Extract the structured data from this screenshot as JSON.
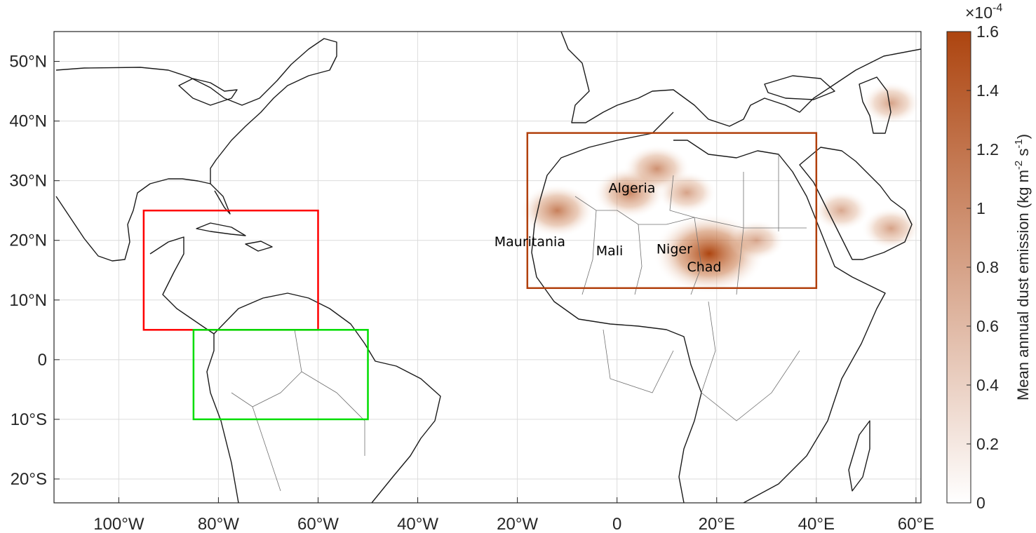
{
  "map": {
    "projection": "equirectangular",
    "extent": {
      "lon": [
        -113,
        61
      ],
      "lat": [
        -24,
        55
      ]
    },
    "x_ticks": [
      {
        "lon": -100,
        "label": "100°W"
      },
      {
        "lon": -80,
        "label": "80°W"
      },
      {
        "lon": -60,
        "label": "60°W"
      },
      {
        "lon": -40,
        "label": "40°W"
      },
      {
        "lon": -20,
        "label": "20°W"
      },
      {
        "lon": 0,
        "label": "0"
      },
      {
        "lon": 20,
        "label": "20°E"
      },
      {
        "lon": 40,
        "label": "40°E"
      },
      {
        "lon": 60,
        "label": "60°E"
      }
    ],
    "y_ticks": [
      {
        "lat": 50,
        "label": "50°N"
      },
      {
        "lat": 40,
        "label": "40°N"
      },
      {
        "lat": 30,
        "label": "30°N"
      },
      {
        "lat": 20,
        "label": "20°N"
      },
      {
        "lat": 10,
        "label": "10°N"
      },
      {
        "lat": 0,
        "label": "0"
      },
      {
        "lat": -10,
        "label": "10°S"
      },
      {
        "lat": -20,
        "label": "20°S"
      }
    ],
    "grid": true,
    "regions": [
      {
        "name": "red-box",
        "color": "#ff0000",
        "lon": [
          -95,
          -60
        ],
        "lat": [
          5,
          25
        ]
      },
      {
        "name": "green-box",
        "color": "#00dd00",
        "lon": [
          -85,
          -50
        ],
        "lat": [
          -10,
          5
        ]
      },
      {
        "name": "brown-box",
        "color": "#b1400d",
        "lon": [
          -18,
          40
        ],
        "lat": [
          12,
          38
        ]
      }
    ],
    "country_labels": [
      {
        "text": "Algeria",
        "lon": 3,
        "lat": 28
      },
      {
        "text": "Mauritania",
        "lon": -17.5,
        "lat": 19
      },
      {
        "text": "Mali",
        "lon": -1.5,
        "lat": 17.5
      },
      {
        "text": "Niger",
        "lon": 11.5,
        "lat": 17.8
      },
      {
        "text": "Chad",
        "lon": 17.5,
        "lat": 14.8
      }
    ],
    "dust_hotspots": [
      {
        "lon": 18.5,
        "lat": 17.8,
        "value": 1.45
      },
      {
        "lon": -12,
        "lat": 25,
        "value": 0.7
      },
      {
        "lon": 2.5,
        "lat": 28,
        "value": 0.65
      },
      {
        "lon": 8,
        "lat": 32,
        "value": 0.55
      },
      {
        "lon": 14,
        "lat": 28,
        "value": 0.4
      },
      {
        "lon": 28,
        "lat": 20,
        "value": 0.35
      },
      {
        "lon": 45,
        "lat": 25,
        "value": 0.35
      },
      {
        "lon": 55,
        "lat": 43,
        "value": 0.4
      },
      {
        "lon": 55,
        "lat": 22,
        "value": 0.4
      }
    ]
  },
  "colorbar": {
    "min": 0,
    "max": 1.6,
    "color_low": "#ffffff",
    "color_high": "#ad4510",
    "ticks": [
      {
        "value": 0,
        "label": "0"
      },
      {
        "value": 0.2,
        "label": "0.2"
      },
      {
        "value": 0.4,
        "label": "0.4"
      },
      {
        "value": 0.6,
        "label": "0.6"
      },
      {
        "value": 0.8,
        "label": "0.8"
      },
      {
        "value": 1.0,
        "label": "1"
      },
      {
        "value": 1.2,
        "label": "1.2"
      },
      {
        "value": 1.4,
        "label": "1.4"
      },
      {
        "value": 1.6,
        "label": "1.6"
      }
    ],
    "exponent_base": "×10",
    "exponent_power": "-4",
    "title_main": "Mean annual dust emission (kg m",
    "title_exp1": "-2",
    "title_mid": " s",
    "title_exp2": "-1",
    "title_end": ")"
  }
}
